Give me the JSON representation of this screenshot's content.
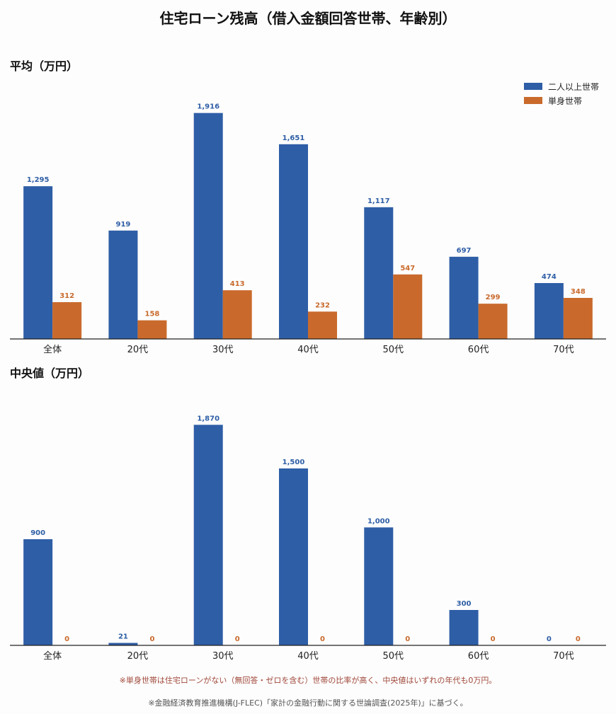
{
  "title": "住宅ローン残高（借入金額回答世帯、年齢別）",
  "colors": {
    "multi": "#2e5ea6",
    "single": "#c96a2c"
  },
  "legend": {
    "multi": "二人以上世帯",
    "single": "単身世帯"
  },
  "chart_data": [
    {
      "type": "bar",
      "title": "平均（万円）",
      "categories": [
        "全体",
        "20代",
        "30代",
        "40代",
        "50代",
        "60代",
        "70代"
      ],
      "series": [
        {
          "name": "二人以上世帯",
          "values": [
            1295,
            919,
            1916,
            1651,
            1117,
            697,
            474
          ]
        },
        {
          "name": "単身世帯",
          "values": [
            312,
            158,
            413,
            232,
            547,
            299,
            348
          ]
        }
      ],
      "ylim": [
        0,
        2100
      ],
      "legend_position": "top-right",
      "grid": false
    },
    {
      "type": "bar",
      "title": "中央値（万円）",
      "categories": [
        "全体",
        "20代",
        "30代",
        "40代",
        "50代",
        "60代",
        "70代"
      ],
      "series": [
        {
          "name": "二人以上世帯",
          "values": [
            900,
            21,
            1870,
            1500,
            1000,
            300,
            0
          ]
        },
        {
          "name": "単身世帯",
          "values": [
            0,
            0,
            0,
            0,
            0,
            0,
            0
          ]
        }
      ],
      "ylim": [
        0,
        2100
      ],
      "grid": false
    }
  ],
  "notes": {
    "note1": "※単身世帯は住宅ローンがない（無回答・ゼロを含む）世帯の比率が高く、中央値はいずれの年代も0万円。",
    "note2": "※金融経済教育推進機構(J-FLEC)「家計の金融行動に関する世論調査(2025年)」に基づく。"
  }
}
